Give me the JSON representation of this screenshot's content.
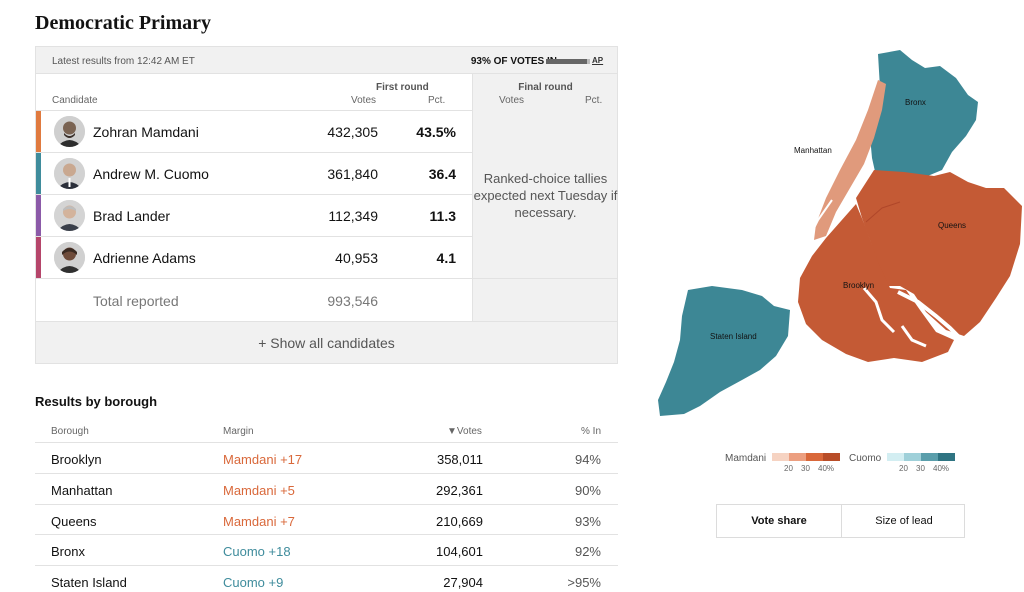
{
  "page": {
    "title": "Democratic Primary"
  },
  "results": {
    "latest": "Latest results from 12:42 AM ET",
    "votes_in": "93% OF VOTES IN",
    "votes_in_fraction": 0.93,
    "source": "AP",
    "first_round": "First round",
    "final_round": "Final round",
    "col_candidate": "Candidate",
    "col_votes": "Votes",
    "col_pct": "Pct.",
    "final_note": "Ranked-choice tallies expected next Tuesday if necessary.",
    "candidates": [
      {
        "name": "Zohran Mamdani",
        "votes": "432,305",
        "pct": "43.5%",
        "color": "#e07a3f"
      },
      {
        "name": "Andrew M. Cuomo",
        "votes": "361,840",
        "pct": "36.4",
        "color": "#3f8c9c"
      },
      {
        "name": "Brad Lander",
        "votes": "112,349",
        "pct": "11.3",
        "color": "#8b5aa8"
      },
      {
        "name": "Adrienne Adams",
        "votes": "40,953",
        "pct": "4.1",
        "color": "#b5456a"
      }
    ],
    "total_label": "Total reported",
    "total_votes": "993,546",
    "show_all": "+ Show all candidates"
  },
  "borough": {
    "title": "Results by borough",
    "col_borough": "Borough",
    "col_margin": "Margin",
    "col_votes": "▼Votes",
    "col_pct_in": "% In",
    "rows": [
      {
        "name": "Brooklyn",
        "margin": "Mamdani +17",
        "margin_color": "#d9683a",
        "votes": "358,011",
        "pct_in": "94%"
      },
      {
        "name": "Manhattan",
        "margin": "Mamdani +5",
        "margin_color": "#d9683a",
        "votes": "292,361",
        "pct_in": "90%"
      },
      {
        "name": "Queens",
        "margin": "Mamdani +7",
        "margin_color": "#d9683a",
        "votes": "210,669",
        "pct_in": "93%"
      },
      {
        "name": "Bronx",
        "margin": "Cuomo +18",
        "margin_color": "#3f8c9c",
        "votes": "104,601",
        "pct_in": "92%"
      },
      {
        "name": "Staten Island",
        "margin": "Cuomo +9",
        "margin_color": "#3f8c9c",
        "votes": "27,904",
        "pct_in": ">95%"
      }
    ]
  },
  "map": {
    "labels": {
      "bronx": "Bronx",
      "manhattan": "Manhattan",
      "queens": "Queens",
      "brooklyn": "Brooklyn",
      "staten_island": "Staten Island"
    },
    "colors": {
      "mamdani_strong": "#c45a35",
      "mamdani_light": "#e09a7c",
      "cuomo": "#3d8795"
    }
  },
  "legend": {
    "mamdani_label": "Mamdani",
    "cuomo_label": "Cuomo",
    "mamdani_swatches": [
      "#f6d3c2",
      "#ec9f80",
      "#d9683a",
      "#b84d28"
    ],
    "cuomo_swatches": [
      "#d3eef2",
      "#9fd0d9",
      "#5a9eab",
      "#2f7482"
    ],
    "ticks": [
      "20",
      "30",
      "40%"
    ]
  },
  "toggle": {
    "vote_share": "Vote share",
    "size_of_lead": "Size of lead"
  }
}
